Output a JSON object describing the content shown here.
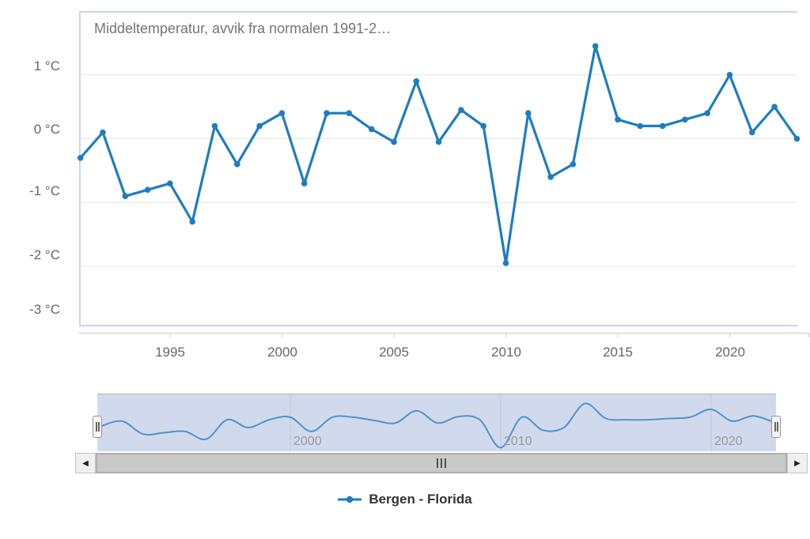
{
  "chart_data": {
    "type": "line",
    "title": "Middeltemperatur, avvik fra normalen 1991-2…",
    "unit": "°C",
    "grid": true,
    "legend_position": "bottom-center",
    "xlim": [
      1990.94,
      2023.02
    ],
    "ylim": [
      -2.94,
      2.0
    ],
    "series": [
      {
        "name": "Bergen - Florida",
        "color": "#1e7dbf",
        "x": [
          1991,
          1992,
          1993,
          1994,
          1995,
          1996,
          1997,
          1998,
          1999,
          2000,
          2001,
          2002,
          2003,
          2004,
          2005,
          2006,
          2007,
          2008,
          2009,
          2010,
          2011,
          2012,
          2013,
          2014,
          2015,
          2016,
          2017,
          2018,
          2019,
          2020,
          2021,
          2022,
          2023
        ],
        "values": [
          -0.3,
          0.1,
          -0.9,
          -0.8,
          -0.7,
          -1.3,
          0.2,
          -0.4,
          0.2,
          0.4,
          -0.7,
          0.4,
          0.4,
          0.15,
          -0.05,
          0.9,
          -0.05,
          0.45,
          0.2,
          -1.95,
          0.4,
          -0.6,
          -0.4,
          1.45,
          0.3,
          0.2,
          0.2,
          0.3,
          0.4,
          1.0,
          0.1,
          0.5,
          0.0
        ]
      }
    ],
    "y_ticks": [
      {
        "value": 1,
        "label": "1 °C"
      },
      {
        "value": 0,
        "label": "0 °C"
      },
      {
        "value": -1,
        "label": "-1 °C"
      },
      {
        "value": -2,
        "label": "-2 °C"
      },
      {
        "value": -3,
        "label": "-3 °C"
      }
    ],
    "x_ticks": [
      {
        "value": 1995,
        "label": "1995"
      },
      {
        "value": 2000,
        "label": "2000"
      },
      {
        "value": 2005,
        "label": "2005"
      },
      {
        "value": 2010,
        "label": "2010"
      },
      {
        "value": 2015,
        "label": "2015"
      },
      {
        "value": 2020,
        "label": "2020"
      }
    ],
    "navigator": {
      "xlim": [
        1991,
        2023
      ],
      "ylim": [
        -2.23,
        2.16
      ],
      "line_color": "#4e93cd",
      "mask_color": "rgba(102,133,194,0.3)",
      "gridline_color": "#bfc7d8",
      "outline_color": "#b3b3b3",
      "x_ticks": [
        {
          "value": 2000,
          "label": "2000"
        },
        {
          "value": 2010,
          "label": "2010"
        },
        {
          "value": 2020,
          "label": "2020"
        }
      ]
    },
    "colors": {
      "grid": "#e6e6e6",
      "axis_line": "#cccccc",
      "plot_border": "#ccd3ef",
      "axis_label": "#666666",
      "title": "#757575",
      "nav_label": "#999999",
      "legend_text": "#333333"
    }
  },
  "ui": {
    "scrollbar": {
      "left_glyph": "◀",
      "right_glyph": "▶"
    }
  }
}
